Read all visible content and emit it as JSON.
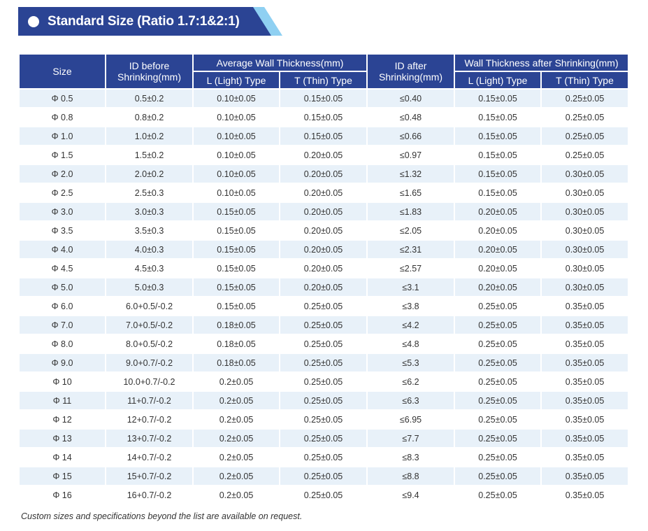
{
  "banner": {
    "title": "Standard Size (Ratio 1.7:1&2:1)"
  },
  "table": {
    "headers": {
      "size": "Size",
      "id_before": "ID before Shrinking(mm)",
      "avg_wall": "Average Wall Thickness(mm)",
      "id_after": "ID after Shrinking(mm)",
      "wall_after": "Wall Thickness after Shrinking(mm)",
      "light": "L (Light) Type",
      "thin": "T (Thin) Type"
    },
    "rows": [
      [
        "Φ 0.5",
        "0.5±0.2",
        "0.10±0.05",
        "0.15±0.05",
        "≤0.40",
        "0.15±0.05",
        "0.25±0.05"
      ],
      [
        "Φ 0.8",
        "0.8±0.2",
        "0.10±0.05",
        "0.15±0.05",
        "≤0.48",
        "0.15±0.05",
        "0.25±0.05"
      ],
      [
        "Φ 1.0",
        "1.0±0.2",
        "0.10±0.05",
        "0.15±0.05",
        "≤0.66",
        "0.15±0.05",
        "0.25±0.05"
      ],
      [
        "Φ 1.5",
        "1.5±0.2",
        "0.10±0.05",
        "0.20±0.05",
        "≤0.97",
        "0.15±0.05",
        "0.25±0.05"
      ],
      [
        "Φ 2.0",
        "2.0±0.2",
        "0.10±0.05",
        "0.20±0.05",
        "≤1.32",
        "0.15±0.05",
        "0.30±0.05"
      ],
      [
        "Φ 2.5",
        "2.5±0.3",
        "0.10±0.05",
        "0.20±0.05",
        "≤1.65",
        "0.15±0.05",
        "0.30±0.05"
      ],
      [
        "Φ 3.0",
        "3.0±0.3",
        "0.15±0.05",
        "0.20±0.05",
        "≤1.83",
        "0.20±0.05",
        "0.30±0.05"
      ],
      [
        "Φ 3.5",
        "3.5±0.3",
        "0.15±0.05",
        "0.20±0.05",
        "≤2.05",
        "0.20±0.05",
        "0.30±0.05"
      ],
      [
        "Φ 4.0",
        "4.0±0.3",
        "0.15±0.05",
        "0.20±0.05",
        "≤2.31",
        "0.20±0.05",
        "0.30±0.05"
      ],
      [
        "Φ 4.5",
        "4.5±0.3",
        "0.15±0.05",
        "0.20±0.05",
        "≤2.57",
        "0.20±0.05",
        "0.30±0.05"
      ],
      [
        "Φ 5.0",
        "5.0±0.3",
        "0.15±0.05",
        "0.20±0.05",
        "≤3.1",
        "0.20±0.05",
        "0.30±0.05"
      ],
      [
        "Φ 6.0",
        "6.0+0.5/-0.2",
        "0.15±0.05",
        "0.25±0.05",
        "≤3.8",
        "0.25±0.05",
        "0.35±0.05"
      ],
      [
        "Φ 7.0",
        "7.0+0.5/-0.2",
        "0.18±0.05",
        "0.25±0.05",
        "≤4.2",
        "0.25±0.05",
        "0.35±0.05"
      ],
      [
        "Φ 8.0",
        "8.0+0.5/-0.2",
        "0.18±0.05",
        "0.25±0.05",
        "≤4.8",
        "0.25±0.05",
        "0.35±0.05"
      ],
      [
        "Φ 9.0",
        "9.0+0.7/-0.2",
        "0.18±0.05",
        "0.25±0.05",
        "≤5.3",
        "0.25±0.05",
        "0.35±0.05"
      ],
      [
        "Φ 10",
        "10.0+0.7/-0.2",
        "0.2±0.05",
        "0.25±0.05",
        "≤6.2",
        "0.25±0.05",
        "0.35±0.05"
      ],
      [
        "Φ 11",
        "11+0.7/-0.2",
        "0.2±0.05",
        "0.25±0.05",
        "≤6.3",
        "0.25±0.05",
        "0.35±0.05"
      ],
      [
        "Φ 12",
        "12+0.7/-0.2",
        "0.2±0.05",
        "0.25±0.05",
        "≤6.95",
        "0.25±0.05",
        "0.35±0.05"
      ],
      [
        "Φ 13",
        "13+0.7/-0.2",
        "0.2±0.05",
        "0.25±0.05",
        "≤7.7",
        "0.25±0.05",
        "0.35±0.05"
      ],
      [
        "Φ 14",
        "14+0.7/-0.2",
        "0.2±0.05",
        "0.25±0.05",
        "≤8.3",
        "0.25±0.05",
        "0.35±0.05"
      ],
      [
        "Φ 15",
        "15+0.7/-0.2",
        "0.2±0.05",
        "0.25±0.05",
        "≤8.8",
        "0.25±0.05",
        "0.35±0.05"
      ],
      [
        "Φ 16",
        "16+0.7/-0.2",
        "0.2±0.05",
        "0.25±0.05",
        "≤9.4",
        "0.25±0.05",
        "0.35±0.05"
      ]
    ]
  },
  "footnote": "Custom sizes and specifications beyond the list are available on request.",
  "colors": {
    "banner": "#2b4494",
    "banner_accent": "#8fd0f2",
    "header_bg": "#2b4494",
    "row_alt": "#e8f1f9"
  }
}
